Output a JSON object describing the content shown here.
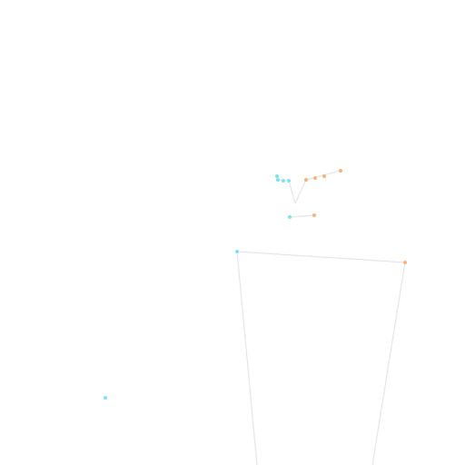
{
  "colors": {
    "background": "#ffffff",
    "bone": "#e6e6e6",
    "left_point": "#7fe3ee",
    "right_point": "#f8b47c"
  }
}
